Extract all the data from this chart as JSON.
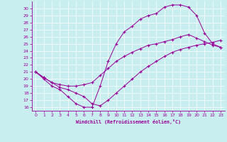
{
  "xlabel": "Windchill (Refroidissement éolien,°C)",
  "bg_color": "#c8eef0",
  "line_color": "#990099",
  "xlim": [
    -0.5,
    23.5
  ],
  "ylim": [
    15.5,
    31.0
  ],
  "xticks": [
    0,
    1,
    2,
    3,
    4,
    5,
    6,
    7,
    8,
    9,
    10,
    11,
    12,
    13,
    14,
    15,
    16,
    17,
    18,
    19,
    20,
    21,
    22,
    23
  ],
  "yticks": [
    16,
    17,
    18,
    19,
    20,
    21,
    22,
    23,
    24,
    25,
    26,
    27,
    28,
    29,
    30
  ],
  "line1_x": [
    0,
    1,
    2,
    3,
    4,
    5,
    6,
    7,
    8,
    9,
    10,
    11,
    12,
    13,
    14,
    15,
    16,
    17,
    18,
    19,
    20,
    21,
    22,
    23
  ],
  "line1_y": [
    21,
    20,
    19,
    18.5,
    17.5,
    16.5,
    16.0,
    16.0,
    19.0,
    22.5,
    25.0,
    26.7,
    27.5,
    28.5,
    29.0,
    29.3,
    30.2,
    30.5,
    30.5,
    30.2,
    29.0,
    26.5,
    25.0,
    24.5
  ],
  "line2_x": [
    0,
    1,
    2,
    3,
    4,
    5,
    6,
    7,
    8,
    9,
    10,
    11,
    12,
    13,
    14,
    15,
    16,
    17,
    18,
    19,
    20,
    21,
    22,
    23
  ],
  "line2_y": [
    21,
    20.2,
    19.5,
    19.2,
    19.0,
    19.0,
    19.2,
    19.5,
    20.5,
    21.5,
    22.5,
    23.2,
    23.8,
    24.3,
    24.8,
    25.0,
    25.3,
    25.6,
    26.0,
    26.3,
    25.8,
    25.3,
    24.8,
    24.5
  ],
  "line3_x": [
    0,
    1,
    2,
    3,
    4,
    5,
    6,
    7,
    8,
    9,
    10,
    11,
    12,
    13,
    14,
    15,
    16,
    17,
    18,
    19,
    20,
    21,
    22,
    23
  ],
  "line3_y": [
    21,
    20.2,
    19.5,
    18.8,
    18.5,
    18.0,
    17.5,
    16.5,
    16.2,
    17.0,
    18.0,
    19.0,
    20.0,
    21.0,
    21.8,
    22.5,
    23.2,
    23.8,
    24.2,
    24.5,
    24.8,
    25.0,
    25.2,
    25.5
  ]
}
